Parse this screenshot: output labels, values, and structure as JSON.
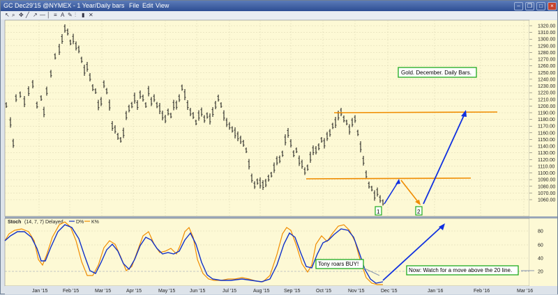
{
  "window": {
    "title": "GC Dec29'15 @NYMEX - 1 Year/Daily bars",
    "menu": [
      "File",
      "Edit",
      "View"
    ]
  },
  "toolbar_icons": [
    "select-icon",
    "zoom-icon",
    "pan-icon",
    "line-icon",
    "arrow-icon",
    "hline-icon",
    "vline-icon",
    "fib-icon",
    "text-icon",
    "pencil-icon",
    "bars-icon",
    "candles-icon",
    "cross-icon"
  ],
  "main_panel": {
    "annotation_title": "Gold. December. Daily Bars.",
    "marker_1": "1",
    "marker_2": "2",
    "y_ticks": [
      "1320.00",
      "1310.00",
      "1300.00",
      "1290.00",
      "1280.00",
      "1270.00",
      "1260.00",
      "1250.00",
      "1240.00",
      "1230.00",
      "1220.00",
      "1210.00",
      "1200.00",
      "1190.00",
      "1180.00",
      "1170.00",
      "1160.00",
      "1150.00",
      "1140.00",
      "1130.00",
      "1120.00",
      "1110.00",
      "1100.00",
      "1090.00",
      "1080.00",
      "1070.00",
      "1060.00"
    ]
  },
  "stoch_panel": {
    "header": "Stoch",
    "params": "(14, 7, 7) Delayed",
    "legend_d": "D%",
    "legend_k": "K%",
    "callout_buy": "Tony roars BUY!",
    "callout_now": "Now:  Watch for a move above the 20 line.",
    "y_ticks": [
      "80",
      "60",
      "40",
      "20"
    ]
  },
  "x_axis": [
    "Jan '15",
    "Feb '15",
    "Mar '15",
    "Apr '15",
    "May '15",
    "Jun '15",
    "Jul '15",
    "Aug '15",
    "Sep '15",
    "Oct '15",
    "Nov '15",
    "Dec '15",
    "Jan '16",
    "Feb '16",
    "Mar '16"
  ],
  "colors": {
    "plot_bg": "#fdf9d5",
    "support_line": "#f08c00",
    "forecast_arrow": "#1030e0",
    "callout_border": "#1faa1f",
    "k_line": "#f08c00",
    "d_line": "#1030c8"
  }
}
